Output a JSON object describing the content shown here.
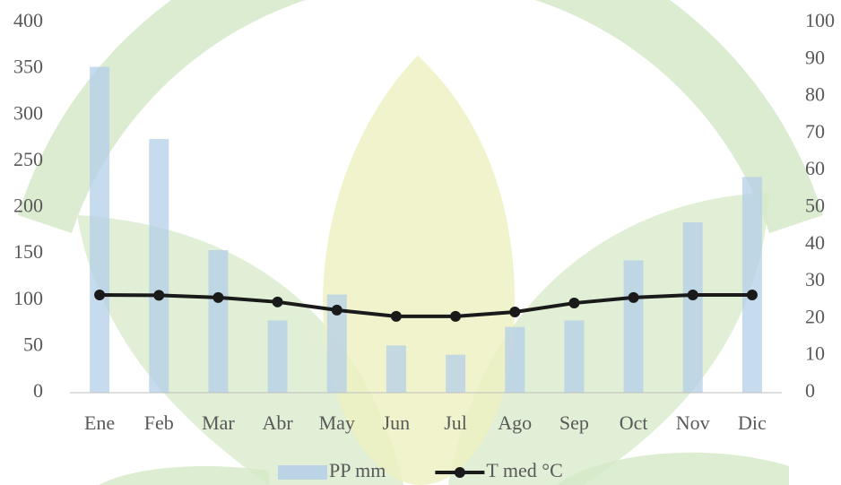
{
  "chart_data": {
    "type": "bar-line",
    "categories": [
      "Ene",
      "Feb",
      "Mar",
      "Abr",
      "May",
      "Jun",
      "Jul",
      "Ago",
      "Sep",
      "Oct",
      "Nov",
      "Dic"
    ],
    "series": [
      {
        "name": "PP mm",
        "type": "bar",
        "color": "#b4cfe8",
        "values": [
          352,
          274,
          154,
          78,
          106,
          51,
          41,
          71,
          78,
          143,
          184,
          233
        ]
      },
      {
        "name": "T med °C",
        "type": "line",
        "axis": "y2",
        "color": "#1a1a1a",
        "values": [
          26.4,
          26.3,
          25.7,
          24.5,
          22.3,
          20.6,
          20.6,
          21.8,
          24.2,
          25.7,
          26.4,
          26.4
        ]
      }
    ],
    "ylim": [
      0,
      400
    ],
    "yticks": [
      0,
      50,
      100,
      150,
      200,
      250,
      300,
      350,
      400
    ],
    "y2lim": [
      0,
      100
    ],
    "y2ticks": [
      0,
      10,
      20,
      30,
      40,
      50,
      60,
      70,
      80,
      90,
      100
    ],
    "legend": "bottom"
  }
}
